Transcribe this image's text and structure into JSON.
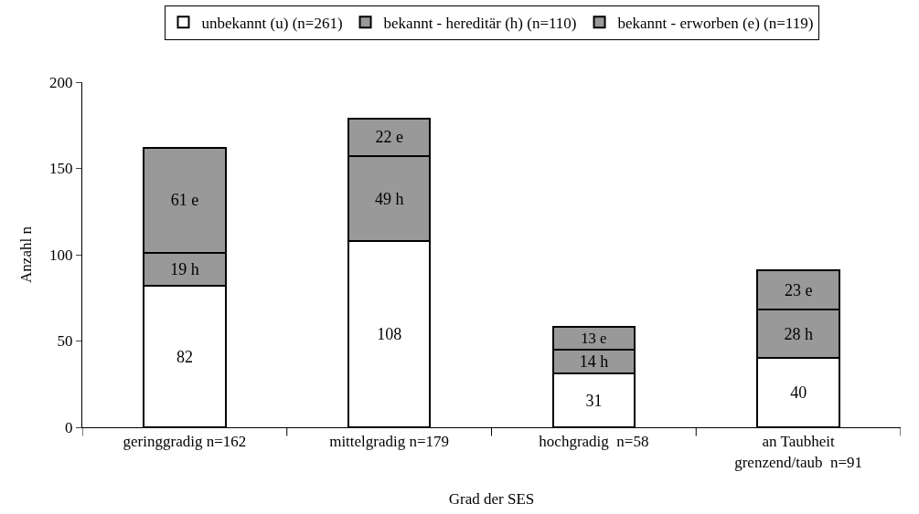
{
  "chart_data": {
    "type": "bar",
    "stacked": true,
    "xlabel": "Grad der SES",
    "ylabel": "Anzahl n",
    "categories": [
      "geringgradig n=162",
      "mittelgradig n=179",
      "hochgradig  n=58",
      "an Taubheit\ngrenzend/taub  n=91"
    ],
    "series": [
      {
        "name": "unbekannt (u) (n=261)",
        "color": "#ffffff",
        "values": [
          82,
          108,
          31,
          40
        ],
        "value_labels": [
          "82",
          "108",
          "31",
          "40"
        ]
      },
      {
        "name": "bekannt - hereditär (h) (n=110)",
        "color": "#999999",
        "values": [
          19,
          49,
          14,
          28
        ],
        "value_labels": [
          "19 h",
          "49 h",
          "14 h",
          "28 h"
        ]
      },
      {
        "name": "bekannt - erworben (e) (n=119)",
        "color": "#999999",
        "values": [
          61,
          22,
          13,
          23
        ],
        "value_labels": [
          "61 e",
          "22 e",
          "13 e",
          "23 e"
        ]
      }
    ],
    "ylim": [
      0,
      200
    ],
    "yticks": [
      0,
      50,
      100,
      150,
      200
    ],
    "grid": false,
    "legend": "top"
  }
}
